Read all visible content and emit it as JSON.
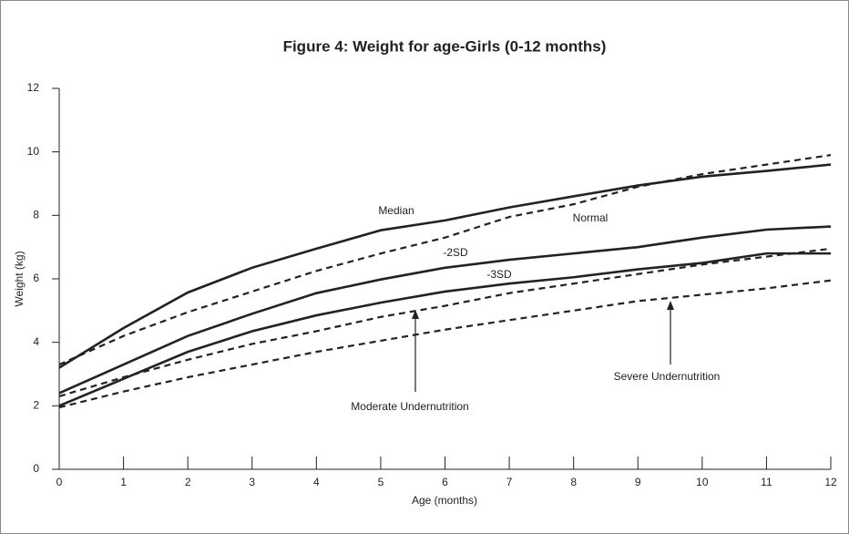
{
  "chart_data": {
    "type": "line",
    "title": "Figure 4: Weight for age-Girls (0-12 months)",
    "x_label": "Age (months)",
    "y_label": "Weight (kg)",
    "x": [
      0,
      1,
      2,
      3,
      4,
      5,
      6,
      7,
      8,
      9,
      10,
      11,
      12
    ],
    "series": [
      {
        "name": "Median",
        "color": "#222222",
        "dashed": false,
        "values": [
          3.2,
          4.45,
          5.57,
          6.35,
          6.95,
          7.53,
          7.84,
          8.25,
          8.6,
          8.94,
          9.22,
          9.4,
          9.6
        ]
      },
      {
        "color": "#222222",
        "dashed": true,
        "values": [
          3.3,
          4.2,
          4.95,
          5.6,
          6.25,
          6.8,
          7.3,
          7.95,
          8.35,
          8.9,
          9.3,
          9.6,
          9.9
        ]
      },
      {
        "name": "-2SD",
        "color": "#222222",
        "dashed": false,
        "values": [
          2.4,
          3.3,
          4.2,
          4.9,
          5.55,
          5.98,
          6.35,
          6.6,
          6.8,
          7.0,
          7.3,
          7.55,
          7.65
        ]
      },
      {
        "name": "-3SD",
        "color": "#222222",
        "dashed": false,
        "values": [
          2.0,
          2.85,
          3.7,
          4.35,
          4.85,
          5.25,
          5.6,
          5.85,
          6.05,
          6.3,
          6.5,
          6.8,
          6.8
        ]
      },
      {
        "color": "#222222",
        "dashed": true,
        "values": [
          2.3,
          2.9,
          3.45,
          3.95,
          4.35,
          4.8,
          5.15,
          5.55,
          5.85,
          6.15,
          6.45,
          6.7,
          6.95
        ]
      },
      {
        "color": "#222222",
        "dashed": true,
        "values": [
          1.95,
          2.45,
          2.9,
          3.3,
          3.7,
          4.05,
          4.4,
          4.7,
          5.0,
          5.3,
          5.5,
          5.7,
          5.95
        ]
      }
    ],
    "annotations": [
      "Normal",
      "Moderate Undernutrition",
      "Severe Undernutrition"
    ],
    "xlim": [
      0,
      12
    ],
    "xticks": [
      0,
      1,
      2,
      3,
      4,
      5,
      6,
      7,
      8,
      9,
      10,
      11,
      12
    ],
    "ylim": [
      0,
      12
    ],
    "yticks": [
      0,
      2,
      4,
      6,
      8,
      10,
      12
    ],
    "grid": false
  }
}
